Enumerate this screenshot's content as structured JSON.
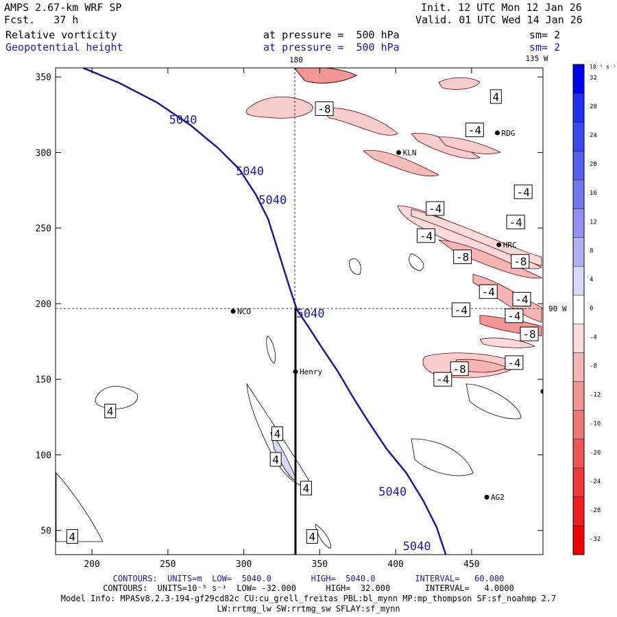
{
  "header": {
    "title_left": "AMPS 2.67-km WRF SP",
    "forecast": "Fcst.   37 h",
    "init": "Init. 12 UTC Mon 12 Jan 26",
    "valid": "Valid. 01 UTC Wed 14 Jan 26",
    "field1": {
      "name": "Relative vorticity",
      "pressure": "at pressure =  500 hPa",
      "sm": "sm= 2"
    },
    "field2": {
      "name": "Geopotential height",
      "pressure": "at pressure =  500 hPa",
      "sm": "sm= 2"
    }
  },
  "map_labels": {
    "lon_180": "180",
    "lon_135w": "135 W",
    "lon_90w": "90 W",
    "stations": [
      {
        "name": "RDG",
        "x": 467,
        "y": 313
      },
      {
        "name": "KLN",
        "x": 402,
        "y": 300
      },
      {
        "name": "HRC",
        "x": 468,
        "y": 239
      },
      {
        "name": "NCO",
        "x": 293,
        "y": 195
      },
      {
        "name": "Henry",
        "x": 334,
        "y": 155
      },
      {
        "name": "AG2",
        "x": 460,
        "y": 72
      },
      {
        "name": "",
        "x": 497,
        "y": 142
      }
    ]
  },
  "colorbar": {
    "unit": "10⁻⁵ s⁻¹",
    "ticks": [
      "32",
      "28",
      "24",
      "20",
      "16",
      "12",
      "8",
      "4",
      "0",
      "-4",
      "-8",
      "-12",
      "-16",
      "-20",
      "-24",
      "-28",
      "-32"
    ],
    "colors": [
      "#0000f0",
      "#2030f0",
      "#3a48f0",
      "#5560f0",
      "#7078f0",
      "#9090f2",
      "#b0b0f5",
      "#d8d8fa",
      "#ffffff",
      "#fadada",
      "#f5b5b5",
      "#f29595",
      "#f07575",
      "#f05555",
      "#f03838",
      "#f01e1e",
      "#f00000"
    ]
  },
  "footer": {
    "line1": "CONTOURS:  UNITS=m  LOW=  5040.0        HIGH=  5040.0        INTERVAL=   60.000",
    "line2": "CONTOURS:  UNITS=10⁻⁵ s⁻¹  LOW= -32.000      HIGH=  32.000       INTERVAL=   4.0000",
    "line3": "Model Info: MPASv8.2.3-194-gf29cd82c CU:cu_grell_freitas PBL:bl_mynn MP:mp_thompson SF:sf_noahmp 2.7",
    "line4": "LW:rrtmg_lw SW:rrtmg_sw SFLAY:sf_mynn"
  },
  "chart_data": {
    "type": "contour",
    "xlim": [
      176,
      497
    ],
    "ylim": [
      34,
      356
    ],
    "x_ticks": [
      200,
      250,
      300,
      350,
      400,
      450
    ],
    "y_ticks": [
      50,
      100,
      150,
      200,
      250,
      300,
      350
    ],
    "height_contour": {
      "value": 5040,
      "label": "5040",
      "points": [
        [
          194,
          356
        ],
        [
          218,
          346
        ],
        [
          243,
          333
        ],
        [
          265,
          318
        ],
        [
          283,
          303
        ],
        [
          297,
          289
        ],
        [
          308,
          272
        ],
        [
          316,
          256
        ],
        [
          321,
          240
        ],
        [
          326,
          224
        ],
        [
          331,
          208
        ],
        [
          335,
          196
        ],
        [
          343,
          184
        ],
        [
          352,
          170
        ],
        [
          362,
          155
        ],
        [
          372,
          138
        ],
        [
          382,
          122
        ],
        [
          394,
          104
        ],
        [
          407,
          88
        ],
        [
          418,
          70
        ],
        [
          427,
          52
        ],
        [
          433,
          34
        ]
      ],
      "label_positions": [
        [
          260,
          319
        ],
        [
          304,
          285
        ],
        [
          319,
          266
        ],
        [
          344,
          191
        ],
        [
          398,
          73
        ],
        [
          414,
          37
        ]
      ]
    },
    "vorticity_labels": [
      {
        "text": "4",
        "x": 466,
        "y": 337
      },
      {
        "text": "-8",
        "x": 353,
        "y": 329
      },
      {
        "text": "-4",
        "x": 452,
        "y": 315
      },
      {
        "text": "-4",
        "x": 484,
        "y": 274
      },
      {
        "text": "-4",
        "x": 426,
        "y": 263
      },
      {
        "text": "-4",
        "x": 479,
        "y": 254
      },
      {
        "text": "-4",
        "x": 420,
        "y": 245
      },
      {
        "text": "-8",
        "x": 444,
        "y": 231
      },
      {
        "text": "-8",
        "x": 482,
        "y": 228
      },
      {
        "text": "-4",
        "x": 461,
        "y": 208
      },
      {
        "text": "-4",
        "x": 483,
        "y": 203
      },
      {
        "text": "-4",
        "x": 443,
        "y": 196
      },
      {
        "text": "-4",
        "x": 478,
        "y": 192
      },
      {
        "text": "-8",
        "x": 488,
        "y": 180
      },
      {
        "text": "-4",
        "x": 478,
        "y": 161
      },
      {
        "text": "-8",
        "x": 442,
        "y": 157
      },
      {
        "text": "-4",
        "x": 431,
        "y": 150
      },
      {
        "text": "4",
        "x": 212,
        "y": 129
      },
      {
        "text": "4",
        "x": 322,
        "y": 114
      },
      {
        "text": "4",
        "x": 321,
        "y": 97
      },
      {
        "text": "4",
        "x": 341,
        "y": 78
      },
      {
        "text": "4",
        "x": 187,
        "y": 46
      },
      {
        "text": "4",
        "x": 345,
        "y": 46
      }
    ]
  }
}
